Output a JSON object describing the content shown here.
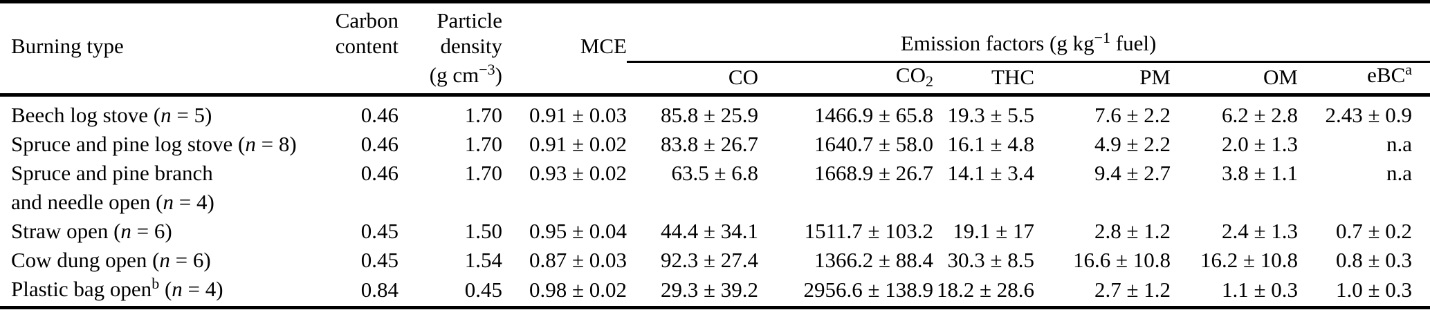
{
  "style": {
    "background": "#ffffff",
    "text_color": "#000000",
    "rule_color": "#000000"
  },
  "table": {
    "headers": {
      "burning_type": "Burning type",
      "carbon_content_lines": [
        "Carbon",
        "content"
      ],
      "particle_density_lines": [
        "Particle",
        "density"
      ],
      "particle_density_unit": [
        {
          "t": "(g cm"
        },
        {
          "t": "−3",
          "sup": true
        },
        {
          "t": ")"
        }
      ],
      "mce": "MCE",
      "emission_factors_group": [
        {
          "t": "Emission factors (g kg"
        },
        {
          "t": "−1",
          "sup": true
        },
        {
          "t": " fuel)"
        }
      ],
      "species": [
        [
          {
            "t": "CO"
          }
        ],
        [
          {
            "t": "CO"
          },
          {
            "t": "2",
            "sub": true
          }
        ],
        [
          {
            "t": "THC"
          }
        ],
        [
          {
            "t": "PM"
          }
        ],
        [
          {
            "t": "OM"
          }
        ],
        [
          {
            "t": "eBC"
          },
          {
            "t": "a",
            "sup": true
          }
        ]
      ]
    },
    "rows": [
      {
        "name_lines": [
          [
            {
              "t": "Beech log stove ("
            },
            {
              "t": "n",
              "i": true
            },
            {
              "t": " = 5)"
            }
          ]
        ],
        "values": [
          "0.46",
          "1.70",
          "0.91 ± 0.03",
          "85.8 ± 25.9",
          "1466.9 ± 65.8",
          "19.3 ± 5.5",
          "7.6 ± 2.2",
          "6.2 ± 2.8",
          "2.43 ± 0.9"
        ]
      },
      {
        "name_lines": [
          [
            {
              "t": "Spruce and pine log stove ("
            },
            {
              "t": "n",
              "i": true
            },
            {
              "t": " = 8)"
            }
          ]
        ],
        "values": [
          "0.46",
          "1.70",
          "0.91 ± 0.02",
          "83.8 ± 26.7",
          "1640.7 ± 58.0",
          "16.1 ± 4.8",
          "4.9 ± 2.2",
          "2.0 ± 1.3",
          "n.a"
        ]
      },
      {
        "name_lines": [
          [
            {
              "t": "Spruce and pine branch"
            }
          ],
          [
            {
              "t": "and needle open ("
            },
            {
              "t": "n",
              "i": true
            },
            {
              "t": " = 4)"
            }
          ]
        ],
        "values": [
          "0.46",
          "1.70",
          "0.93 ± 0.02",
          "63.5 ± 6.8",
          "1668.9 ± 26.7",
          "14.1 ± 3.4",
          "9.4 ± 2.7",
          "3.8 ± 1.1",
          "n.a"
        ]
      },
      {
        "name_lines": [
          [
            {
              "t": "Straw open ("
            },
            {
              "t": "n",
              "i": true
            },
            {
              "t": " = 6)"
            }
          ]
        ],
        "values": [
          "0.45",
          "1.50",
          "0.95 ± 0.04",
          "44.4 ± 34.1",
          "1511.7 ± 103.2",
          "19.1 ± 17",
          "2.8 ± 1.2",
          "2.4 ± 1.3",
          "0.7 ± 0.2"
        ]
      },
      {
        "name_lines": [
          [
            {
              "t": "Cow dung open ("
            },
            {
              "t": "n",
              "i": true
            },
            {
              "t": " = 6)"
            }
          ]
        ],
        "values": [
          "0.45",
          "1.54",
          "0.87 ± 0.03",
          "92.3 ± 27.4",
          "1366.2 ± 88.4",
          "30.3 ± 8.5",
          "16.6 ± 10.8",
          "16.2 ± 10.8",
          "0.8 ± 0.3"
        ]
      },
      {
        "name_lines": [
          [
            {
              "t": "Plastic bag open"
            },
            {
              "t": "b",
              "sup": true
            },
            {
              "t": " ("
            },
            {
              "t": "n",
              "i": true
            },
            {
              "t": " = 4)"
            }
          ]
        ],
        "values": [
          "0.84",
          "0.45",
          "0.98 ± 0.02",
          "29.3 ± 39.2",
          "2956.6 ± 138.9",
          "18.2 ± 28.6",
          "2.7 ± 1.2",
          "1.1 ± 0.3",
          "1.0 ± 0.3"
        ]
      }
    ]
  }
}
